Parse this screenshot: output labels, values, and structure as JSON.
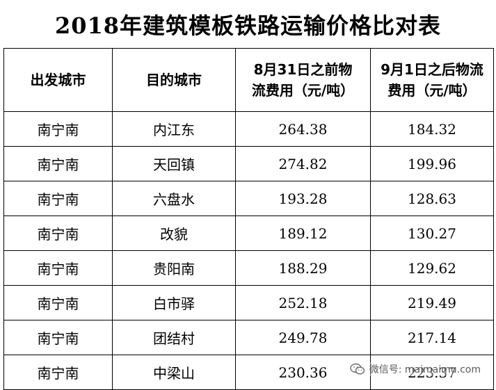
{
  "title": "2018年建筑模板铁路运输价格比对表",
  "headers": {
    "origin": "出发城市",
    "destination": "目的城市",
    "before": "8月31日之前物流费用（元/吨）",
    "after": "9月1日之后物流费用（元/吨）"
  },
  "rows": [
    {
      "origin": "南宁南",
      "destination": "内江东",
      "before": "264.38",
      "after": "184.32"
    },
    {
      "origin": "南宁南",
      "destination": "天回镇",
      "before": "274.82",
      "after": "199.96"
    },
    {
      "origin": "南宁南",
      "destination": "六盘水",
      "before": "193.28",
      "after": "128.63"
    },
    {
      "origin": "南宁南",
      "destination": "改貌",
      "before": "189.12",
      "after": "130.27"
    },
    {
      "origin": "南宁南",
      "destination": "贵阳南",
      "before": "188.29",
      "after": "129.62"
    },
    {
      "origin": "南宁南",
      "destination": "白市驿",
      "before": "252.18",
      "after": "219.49"
    },
    {
      "origin": "南宁南",
      "destination": "团结村",
      "before": "249.78",
      "after": "217.14"
    },
    {
      "origin": "南宁南",
      "destination": "中梁山",
      "before": "230.36",
      "after": "223.37"
    }
  ],
  "watermark": {
    "text": "微信号: maimaimu.com",
    "icon": "wechat-icon"
  }
}
